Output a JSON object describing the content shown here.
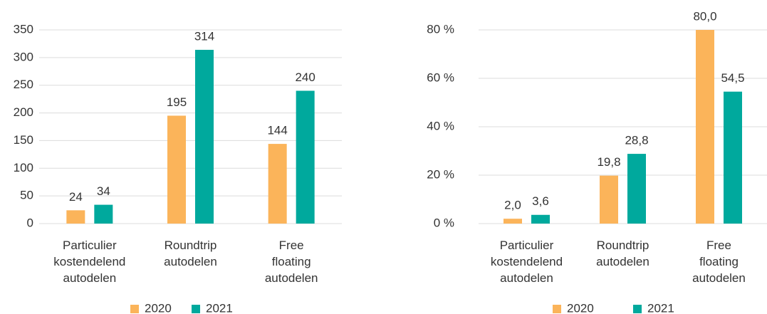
{
  "chart_data": [
    {
      "type": "bar",
      "categories": [
        "Particulier kostendelend autodelen",
        "Roundtrip autodelen",
        "Free floating autodelen"
      ],
      "series": [
        {
          "name": "2020",
          "color": "#fbb45a",
          "values": [
            24,
            195,
            144
          ]
        },
        {
          "name": "2021",
          "color": "#00a99d",
          "values": [
            34,
            314,
            240
          ]
        }
      ],
      "ylim": [
        0,
        350
      ],
      "yticks": [
        0,
        50,
        100,
        150,
        200,
        250,
        300,
        350
      ],
      "grid": true,
      "legend": "bottom"
    },
    {
      "type": "bar",
      "categories": [
        "Particulier kostendelend autodelen",
        "Roundtrip autodelen",
        "Free floating autodelen"
      ],
      "series": [
        {
          "name": "2020",
          "color": "#fbb45a",
          "values": [
            2.0,
            19.8,
            80.0
          ],
          "value_labels": [
            "2,0",
            "19,8",
            "80,0"
          ]
        },
        {
          "name": "2021",
          "color": "#00a99d",
          "values": [
            3.6,
            28.8,
            54.5
          ],
          "value_labels": [
            "3,6",
            "28,8",
            "54,5"
          ]
        }
      ],
      "ylim": [
        0,
        80
      ],
      "yticks": [
        {
          "value": 0,
          "label": "0 %"
        },
        {
          "value": 20,
          "label": "20 %"
        },
        {
          "value": 40,
          "label": "40 %"
        },
        {
          "value": 60,
          "label": "60 %"
        },
        {
          "value": 80,
          "label": "80 %"
        }
      ],
      "grid": true,
      "legend": "bottom"
    }
  ]
}
